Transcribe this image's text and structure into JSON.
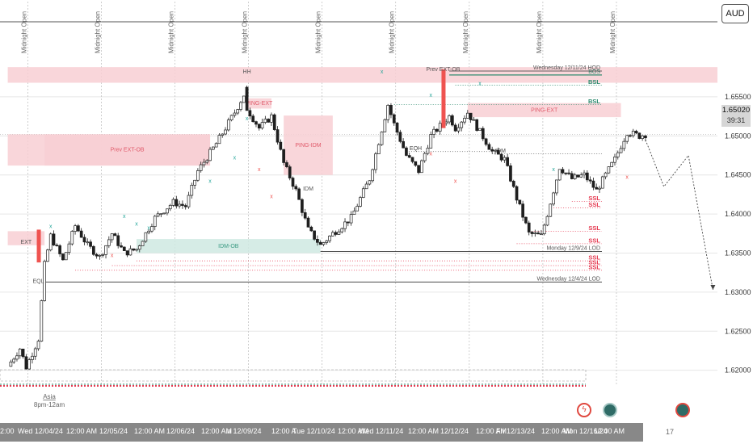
{
  "symbol": {
    "currency": "AUD"
  },
  "current_price": {
    "value": "1.65020",
    "countdown": "39:31"
  },
  "colors": {
    "bull": "#26a69a",
    "bear": "#ef5350",
    "candle": "#1f1f1f",
    "supply_zone": "#f8cfd4",
    "demand_zone": "#cfe9e2",
    "liquidity": "#e53950",
    "bos": "#2e8b6f",
    "grid": "#e6e6e6"
  },
  "chart_data": {
    "type": "candlestick",
    "title": "",
    "xlabel": "",
    "ylabel": "",
    "ylim": [
      1.618,
      1.6645
    ],
    "y_ticks": [
      "1.65500",
      "1.65000",
      "1.64500",
      "1.64000",
      "1.63500",
      "1.63000",
      "1.62500",
      "1.62000"
    ],
    "time_labels": [
      "2:00",
      "Wed 12/04/24",
      "12:00 AM",
      "12/05/24",
      "12:00 AM",
      "12/06/24",
      "12:00 AM",
      "n 12/09/24",
      "12:00 A",
      "Tue 12/10/24",
      "12:00 AM",
      "Wed 12/11/24",
      "12:00 AM",
      "12/12/24",
      "12:00 AM",
      "Fri 12/13/24",
      "12:00 AM",
      "Mon 12/16/24",
      "12:00 AM"
    ],
    "session_markers": [
      "Midnight Open",
      "Midnight Open",
      "Midnight Open",
      "Midnight Open",
      "Midnight Open",
      "Midnight Open",
      "Midnight Open",
      "Midnight Open",
      "Midnight Open"
    ],
    "price_path": [
      [
        "12/03/24 18:00",
        1.6205
      ],
      [
        "12/03/24 22:00",
        1.6228
      ],
      [
        "12/04/24 00:00",
        1.6204
      ],
      [
        "12/04/24 04:00",
        1.624
      ],
      [
        "12/04/24 06:00",
        1.6335
      ],
      [
        "12/04/24 08:00",
        1.6372
      ],
      [
        "12/04/24 12:00",
        1.634
      ],
      [
        "12/04/24 16:00",
        1.6385
      ],
      [
        "12/04/24 20:00",
        1.636
      ],
      [
        "12/05/24 00:00",
        1.6345
      ],
      [
        "12/05/24 04:00",
        1.6375
      ],
      [
        "12/05/24 08:00",
        1.635
      ],
      [
        "12/05/24 12:00",
        1.6355
      ],
      [
        "12/05/24 18:00",
        1.6395
      ],
      [
        "12/06/24 00:00",
        1.6415
      ],
      [
        "12/06/24 04:00",
        1.641
      ],
      [
        "12/06/24 08:00",
        1.6455
      ],
      [
        "12/06/24 14:00",
        1.649
      ],
      [
        "12/06/24 20:00",
        1.653
      ],
      [
        "12/07/24 00:00",
        1.656
      ],
      [
        "12/07/24 04:00",
        1.6545
      ],
      [
        "12/09/24 00:00",
        1.6535
      ],
      [
        "12/09/24 04:00",
        1.651
      ],
      [
        "12/09/24 08:00",
        1.6525
      ],
      [
        "12/09/24 12:00",
        1.6465
      ],
      [
        "12/09/24 16:00",
        1.643
      ],
      [
        "12/09/24 20:00",
        1.638
      ],
      [
        "12/10/24 00:00",
        1.636
      ],
      [
        "12/10/24 04:00",
        1.6375
      ],
      [
        "12/10/24 10:00",
        1.6395
      ],
      [
        "12/10/24 16:00",
        1.6445
      ],
      [
        "12/10/24 22:00",
        1.654
      ],
      [
        "12/11/24 00:00",
        1.6515
      ],
      [
        "12/11/24 04:00",
        1.6475
      ],
      [
        "12/11/24 08:00",
        1.6455
      ],
      [
        "12/11/24 12:00",
        1.65
      ],
      [
        "12/11/24 18:00",
        1.6525
      ],
      [
        "12/11/24 20:00",
        1.651
      ],
      [
        "12/12/24 00:00",
        1.653
      ],
      [
        "12/12/24 04:00",
        1.6505
      ],
      [
        "12/12/24 08:00",
        1.648
      ],
      [
        "12/12/24 12:00",
        1.647
      ],
      [
        "12/12/24 16:00",
        1.642
      ],
      [
        "12/12/24 20:00",
        1.6375
      ],
      [
        "12/13/24 00:00",
        1.6372
      ],
      [
        "12/13/24 02:00",
        1.64
      ],
      [
        "12/13/24 06:00",
        1.646
      ],
      [
        "12/13/24 10:00",
        1.6445
      ],
      [
        "12/13/24 14:00",
        1.645
      ],
      [
        "12/13/24 18:00",
        1.643
      ],
      [
        "12/16/24 00:00",
        1.647
      ],
      [
        "12/16/24 04:00",
        1.6505
      ],
      [
        "12/16/24 08:00",
        1.65
      ],
      [
        "12/16/24 10:00",
        1.6502
      ]
    ],
    "zones": [
      {
        "label": "",
        "kind": "supply",
        "from": "12/03/24 18:00",
        "to": "12/17/24 12:00",
        "top": 1.6588,
        "bottom": 1.6568
      },
      {
        "label": "",
        "kind": "supply",
        "from": "12/03/24 18:00",
        "to": "12/06/24 12:00",
        "top": 1.6502,
        "bottom": 1.6462
      },
      {
        "label": "",
        "kind": "supply",
        "from": "12/03/24 18:00",
        "to": "12/04/24 06:00",
        "top": 1.6378,
        "bottom": 1.636
      },
      {
        "label": "Prev EXT-OB",
        "kind": "supply",
        "from": "12/04/24 06:00",
        "to": "12/06/24 12:00",
        "top": 1.6502,
        "bottom": 1.6462
      },
      {
        "label": "PING-EXT",
        "kind": "supply",
        "from": "12/07/24 04:00",
        "to": "12/09/24 08:00",
        "top": 1.6548,
        "bottom": 1.6535
      },
      {
        "label": "PING-IDM",
        "kind": "supply",
        "from": "12/09/24 12:00",
        "to": "12/10/24 04:00",
        "top": 1.6526,
        "bottom": 1.645
      },
      {
        "label": "PING-EXT",
        "kind": "supply",
        "from": "12/12/24 00:00",
        "to": "12/16/24 02:00",
        "top": 1.6542,
        "bottom": 1.6524
      },
      {
        "label": "IDM-OB",
        "kind": "demand",
        "from": "12/05/24 12:00",
        "to": "12/10/24 00:00",
        "top": 1.6368,
        "bottom": 1.635
      }
    ],
    "levels": [
      {
        "label": "BOS",
        "price": 1.6578,
        "from": "12/11/24 18:00",
        "to": "12/16/24 08:00",
        "style": "bos"
      },
      {
        "label": "BSL",
        "price": 1.6565,
        "from": "12/11/24 20:00",
        "to": "12/16/24 12:00",
        "style": "bsl"
      },
      {
        "label": "BSL",
        "price": 1.654,
        "from": "12/11/24 00:00",
        "to": "12/16/24 12:00",
        "style": "bsl"
      },
      {
        "label": "Wednesday 12/11/24 HOD",
        "price": 1.6583,
        "from": "12/11/24 18:00",
        "to": "12/16/24 12:00",
        "style": "hod"
      },
      {
        "label": "EQH",
        "price": 1.648,
        "from": "12/11/24 04:00",
        "to": "12/12/24 08:00",
        "style": "plain"
      },
      {
        "label": "IDM",
        "price": 1.6477,
        "from": "12/12/24 08:00",
        "to": "12/16/24 04:00",
        "style": "plain"
      },
      {
        "label": "SSL",
        "price": 1.6416,
        "from": "12/13/24 10:00",
        "to": "12/16/24 12:00",
        "style": "ssl"
      },
      {
        "label": "SSL",
        "price": 1.6408,
        "from": "12/13/24 04:00",
        "to": "12/16/24 12:00",
        "style": "ssl"
      },
      {
        "label": "SSL",
        "price": 1.6378,
        "from": "12/12/24 20:00",
        "to": "12/16/24 12:00",
        "style": "ssl"
      },
      {
        "label": "SSL",
        "price": 1.6362,
        "from": "12/12/24 16:00",
        "to": "12/16/24 12:00",
        "style": "ssl"
      },
      {
        "label": "Monday 12/9/24 LOD",
        "price": 1.6352,
        "from": "12/10/24 00:00",
        "to": "12/16/24 12:00",
        "style": "lod"
      },
      {
        "label": "SSL",
        "price": 1.634,
        "from": "12/05/24 12:00",
        "to": "12/16/24 12:00",
        "style": "ssl"
      },
      {
        "label": "SSL",
        "price": 1.6334,
        "from": "12/05/24 04:00",
        "to": "12/16/24 12:00",
        "style": "ssl"
      },
      {
        "label": "SSL",
        "price": 1.6328,
        "from": "12/04/24 16:00",
        "to": "12/16/24 12:00",
        "style": "ssl"
      },
      {
        "label": "Wednesday 12/4/24 LOD",
        "price": 1.6313,
        "from": "12/04/24 06:00",
        "to": "12/16/24 12:00",
        "style": "lod"
      }
    ],
    "markers": [
      {
        "label": "x",
        "kind": "bull",
        "at": [
          "12/04/24 08:00",
          1.6382
        ]
      },
      {
        "label": "x",
        "kind": "bull",
        "at": [
          "12/05/24 08:00",
          1.6395
        ]
      },
      {
        "label": "x",
        "kind": "bull",
        "at": [
          "12/05/24 12:00",
          1.6385
        ]
      },
      {
        "label": "x",
        "kind": "bull",
        "at": [
          "12/05/24 16:00",
          1.638
        ]
      },
      {
        "label": "x",
        "kind": "bull",
        "at": [
          "12/06/24 12:00",
          1.644
        ]
      },
      {
        "label": "x",
        "kind": "bull",
        "at": [
          "12/06/24 20:00",
          1.647
        ]
      },
      {
        "label": "x",
        "kind": "bull",
        "at": [
          "12/07/24 04:00",
          1.652
        ]
      },
      {
        "label": "x",
        "kind": "bull",
        "at": [
          "12/10/24 20:00",
          1.658
        ]
      },
      {
        "label": "x",
        "kind": "bull",
        "at": [
          "12/11/24 12:00",
          1.655
        ]
      },
      {
        "label": "x",
        "kind": "bull",
        "at": [
          "12/12/24 04:00",
          1.6565
        ]
      },
      {
        "label": "x",
        "kind": "bull",
        "at": [
          "12/13/24 04:00",
          1.6455
        ]
      },
      {
        "label": "x",
        "kind": "bear",
        "at": [
          "12/09/24 04:00",
          1.6455
        ]
      },
      {
        "label": "x",
        "kind": "bear",
        "at": [
          "12/09/24 08:00",
          1.642
        ]
      },
      {
        "label": "x",
        "kind": "bear",
        "at": [
          "12/11/24 12:00",
          1.6475
        ]
      },
      {
        "label": "x",
        "kind": "bear",
        "at": [
          "12/11/24 20:00",
          1.644
        ]
      },
      {
        "label": "x",
        "kind": "bear",
        "at": [
          "12/05/24 04:00",
          1.6345
        ]
      },
      {
        "label": "x",
        "kind": "bear",
        "at": [
          "12/16/24 04:00",
          1.6445
        ]
      }
    ],
    "small_labels": [
      {
        "text": "HH",
        "at": [
          "12/07/24 00:00",
          1.658
        ]
      },
      {
        "text": "EQL",
        "at": [
          "12/04/24 04:00",
          1.6312
        ]
      },
      {
        "text": "EXT",
        "at": [
          "12/04/24 00:00",
          1.6362
        ]
      },
      {
        "text": "IDM",
        "at": [
          "12/09/24 20:00",
          1.643
        ]
      },
      {
        "text": "Prev EXT-OB",
        "at": [
          "12/11/24 16:00",
          1.6583
        ]
      }
    ],
    "projection": [
      [
        "12/16/24 10:00",
        1.6495
      ],
      [
        "12/16/24 16:00",
        1.6435
      ],
      [
        "12/17/24 00:00",
        1.6475
      ],
      [
        "12/17/24 08:00",
        1.6303
      ]
    ],
    "session_box": {
      "label": "Asia",
      "sublabel": "8pm-12am"
    },
    "bottom_right_count": "17"
  }
}
